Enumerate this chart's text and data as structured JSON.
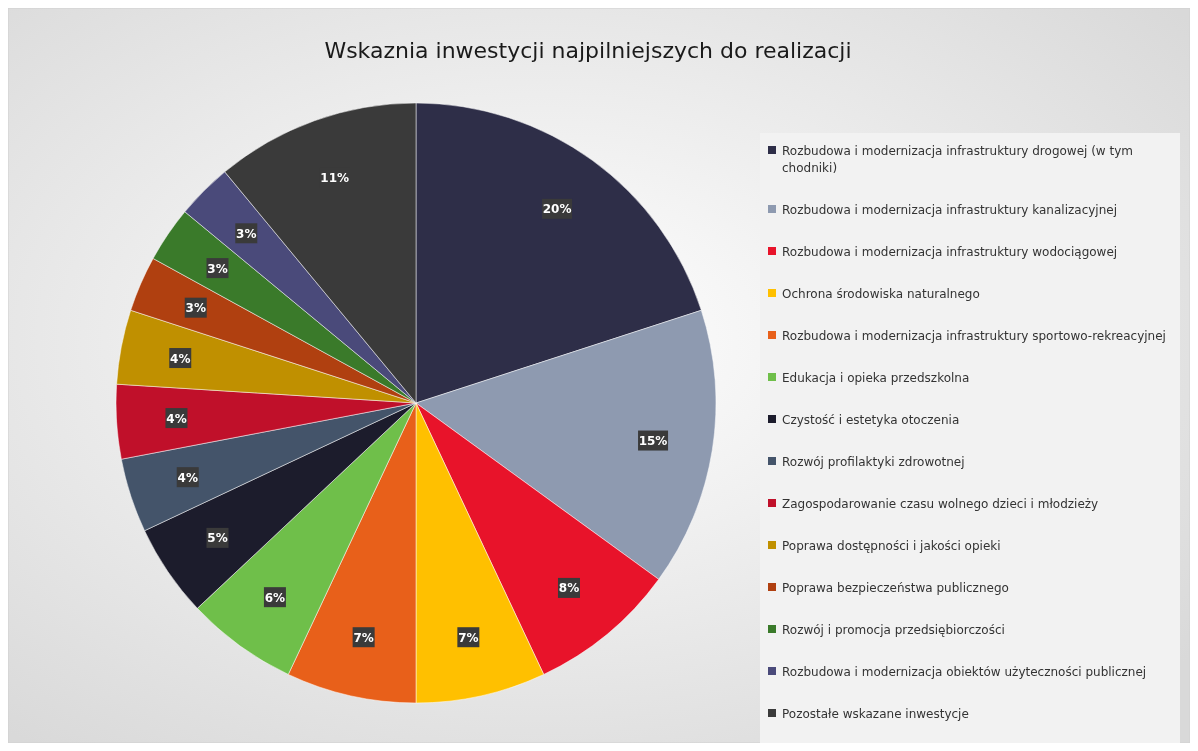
{
  "chart_data": {
    "type": "pie",
    "title": "Wskaznia inwestycji najpilniejszych do realizacji",
    "categories": [
      "Rozbudowa i modernizacja infrastruktury drogowej (w tym chodniki)",
      "Rozbudowa i modernizacja infrastruktury kanalizacyjnej",
      "Rozbudowa i modernizacja infrastruktury wodociągowej",
      "Ochrona środowiska naturalnego",
      "Rozbudowa i modernizacja infrastruktury sportowo-rekreacyjnej",
      "Edukacja i opieka przedszkolna",
      "Czystość i estetyka otoczenia",
      "Rozwój profilaktyki zdrowotnej",
      "Zagospodarowanie czasu wolnego dzieci i młodzieży",
      "Poprawa dostępności i jakości opieki",
      "Poprawa bezpieczeństwa publicznego",
      "Rozwój i promocja przedsiębiorczości",
      "Rozbudowa i modernizacja obiektów użyteczności publicznej",
      "Pozostałe wskazane inwestycje"
    ],
    "values": [
      20,
      15,
      8,
      7,
      7,
      6,
      5,
      4,
      4,
      4,
      3,
      3,
      3,
      11
    ],
    "colors": [
      "#2e2e48",
      "#8e9ab0",
      "#e8132a",
      "#ffc000",
      "#e8601a",
      "#6fbf4a",
      "#1c1c2c",
      "#44546a",
      "#c0102a",
      "#c09000",
      "#b04010",
      "#3a7a2a",
      "#4a4a7a",
      "#3a3a3a"
    ],
    "value_labels": [
      "20%",
      "15%",
      "8%",
      "7%",
      "7%",
      "6%",
      "5%",
      "4%",
      "4%",
      "4%",
      "3%",
      "3%",
      "3%",
      "11%"
    ],
    "legend": "right"
  }
}
